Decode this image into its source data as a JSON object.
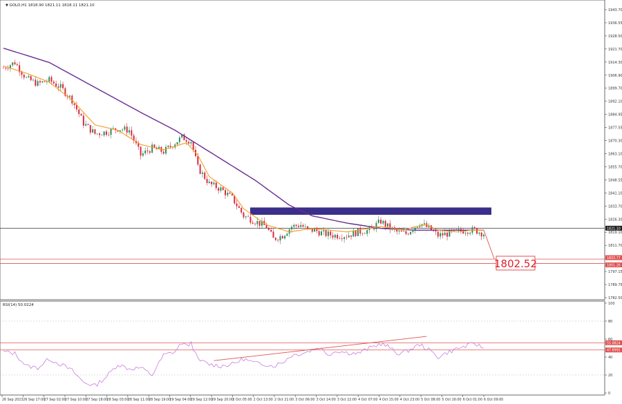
{
  "header": {
    "symbol_info": "GOLD,H1 1818.90 1821.11 1818.11 1821.10",
    "rsi_info": "RSI(14) 50.0224"
  },
  "target_label": "1802.52",
  "colors": {
    "background": "#ffffff",
    "bull_candle": "#2e8b57",
    "bear_candle": "#d5283c",
    "ma_slow": "#6a2c91",
    "ma_fast": "#f59a23",
    "resistance_zone": "#3a2f8a",
    "support_lines": "#e05050",
    "rsi_line": "#c77ddc",
    "current_price_line": "#333333"
  },
  "chart_data": [
    {
      "type": "candlestick",
      "title": "GOLD,H1",
      "y_ticks": [
        "1943.70",
        "1936.55",
        "1928.50",
        "1921.70",
        "1914.30",
        "1906.90",
        "1899.70",
        "1892.10",
        "1884.95",
        "1877.55",
        "1870.30",
        "1863.10",
        "1855.70",
        "1848.55",
        "1841.10",
        "1833.70",
        "1826.30",
        "1819.10",
        "1811.70",
        "1804.55",
        "1797.15",
        "1789.75",
        "1782.50"
      ],
      "y_range": [
        1781,
        1949
      ],
      "x_ticks": [
        "26 Sep 2023",
        "26 Sep 17:00",
        "27 Sep 02:00",
        "27 Sep 10:00",
        "27 Sep 18:00",
        "28 Sep 03:00",
        "28 Sep 11:00",
        "28 Sep 19:00",
        "29 Sep 04:00",
        "29 Sep 12:00",
        "29 Sep 20:00",
        "2 Oct 05:00",
        "2 Oct 13:00",
        "2 Oct 21:00",
        "3 Oct 06:00",
        "3 Oct 14:00",
        "3 Oct 22:00",
        "4 Oct 07:00",
        "4 Oct 15:00",
        "4 Oct 23:00",
        "5 Oct 08:00",
        "5 Oct 16:00",
        "6 Oct 01:00",
        "6 Oct 09:00"
      ],
      "price_waypoints": [
        [
          0,
          1911
        ],
        [
          5,
          1914
        ],
        [
          10,
          1905
        ],
        [
          15,
          1902
        ],
        [
          20,
          1904
        ],
        [
          25,
          1900
        ],
        [
          30,
          1893
        ],
        [
          35,
          1880
        ],
        [
          40,
          1874
        ],
        [
          45,
          1875
        ],
        [
          50,
          1877
        ],
        [
          55,
          1876
        ],
        [
          60,
          1862
        ],
        [
          65,
          1866
        ],
        [
          70,
          1864
        ],
        [
          75,
          1869
        ],
        [
          78,
          1872
        ],
        [
          82,
          1870
        ],
        [
          85,
          1855
        ],
        [
          90,
          1846
        ],
        [
          95,
          1843
        ],
        [
          100,
          1838
        ],
        [
          105,
          1828
        ],
        [
          110,
          1825
        ],
        [
          115,
          1822
        ],
        [
          118,
          1815
        ],
        [
          122,
          1817
        ],
        [
          126,
          1822
        ],
        [
          130,
          1823
        ],
        [
          133,
          1820
        ],
        [
          136,
          1820
        ],
        [
          140,
          1818
        ],
        [
          145,
          1817
        ],
        [
          150,
          1817
        ],
        [
          155,
          1819
        ],
        [
          160,
          1820
        ],
        [
          165,
          1825
        ],
        [
          168,
          1822
        ],
        [
          172,
          1819
        ],
        [
          176,
          1818
        ],
        [
          182,
          1824
        ],
        [
          186,
          1821
        ],
        [
          190,
          1817
        ],
        [
          194,
          1818
        ],
        [
          198,
          1819
        ],
        [
          202,
          1820
        ],
        [
          206,
          1820
        ],
        [
          210,
          1818
        ]
      ],
      "ma_fast": [
        [
          0,
          1912
        ],
        [
          10,
          1908
        ],
        [
          20,
          1903
        ],
        [
          30,
          1893
        ],
        [
          40,
          1879
        ],
        [
          50,
          1876
        ],
        [
          60,
          1868
        ],
        [
          70,
          1865
        ],
        [
          80,
          1869
        ],
        [
          85,
          1862
        ],
        [
          90,
          1850
        ],
        [
          100,
          1841
        ],
        [
          105,
          1832
        ],
        [
          115,
          1823
        ],
        [
          125,
          1819
        ],
        [
          135,
          1821
        ],
        [
          150,
          1819
        ],
        [
          165,
          1822
        ],
        [
          175,
          1820
        ],
        [
          180,
          1822
        ],
        [
          185,
          1823
        ],
        [
          190,
          1820
        ],
        [
          198,
          1819
        ],
        [
          205,
          1820
        ],
        [
          210,
          1820
        ]
      ],
      "ma_slow": [
        [
          0,
          1922
        ],
        [
          20,
          1914
        ],
        [
          40,
          1900
        ],
        [
          60,
          1886
        ],
        [
          75,
          1876
        ],
        [
          90,
          1864
        ],
        [
          110,
          1848
        ],
        [
          125,
          1834
        ],
        [
          135,
          1828
        ],
        [
          150,
          1824
        ],
        [
          165,
          1821
        ],
        [
          180,
          1820
        ],
        [
          195,
          1820
        ],
        [
          210,
          1820
        ]
      ],
      "resistance_zone": [
        1828.6,
        1832.7
      ],
      "support_lines": [
        1803.8,
        1801.3
      ],
      "current_price": 1821.1,
      "right_axis_tags": [
        "1821.10",
        "1803.77",
        "1801.26"
      ],
      "projection": [
        [
          210,
          1820
        ],
        [
          214,
          1803.8
        ]
      ],
      "target": 1802.52
    },
    {
      "type": "line",
      "title": "RSI(14) 50.0224",
      "y_ticks": [
        "100",
        "80",
        "60",
        "40",
        "20",
        "0"
      ],
      "y_range": [
        0,
        100
      ],
      "levels": [
        "55.8824",
        "47.8992"
      ],
      "level_values": [
        55.88,
        47.9
      ],
      "rsi_waypoints": [
        [
          0,
          46
        ],
        [
          5,
          44
        ],
        [
          10,
          30
        ],
        [
          15,
          28
        ],
        [
          20,
          38
        ],
        [
          25,
          32
        ],
        [
          30,
          25
        ],
        [
          35,
          12
        ],
        [
          40,
          8
        ],
        [
          45,
          18
        ],
        [
          50,
          32
        ],
        [
          55,
          27
        ],
        [
          60,
          28
        ],
        [
          65,
          20
        ],
        [
          70,
          42
        ],
        [
          75,
          46
        ],
        [
          78,
          56
        ],
        [
          80,
          52
        ],
        [
          82,
          56
        ],
        [
          85,
          37
        ],
        [
          90,
          32
        ],
        [
          95,
          30
        ],
        [
          100,
          32
        ],
        [
          105,
          38
        ],
        [
          110,
          33
        ],
        [
          115,
          32
        ],
        [
          118,
          30
        ],
        [
          122,
          34
        ],
        [
          126,
          42
        ],
        [
          130,
          44
        ],
        [
          133,
          46
        ],
        [
          138,
          51
        ],
        [
          142,
          43
        ],
        [
          146,
          47
        ],
        [
          150,
          45
        ],
        [
          155,
          44
        ],
        [
          160,
          50
        ],
        [
          165,
          55
        ],
        [
          168,
          52
        ],
        [
          172,
          44
        ],
        [
          176,
          46
        ],
        [
          182,
          54
        ],
        [
          186,
          48
        ],
        [
          190,
          40
        ],
        [
          194,
          45
        ],
        [
          198,
          49
        ],
        [
          202,
          52
        ],
        [
          206,
          55
        ],
        [
          210,
          50
        ]
      ],
      "divergence_line": [
        [
          92,
          36
        ],
        [
          185,
          63
        ]
      ]
    }
  ]
}
